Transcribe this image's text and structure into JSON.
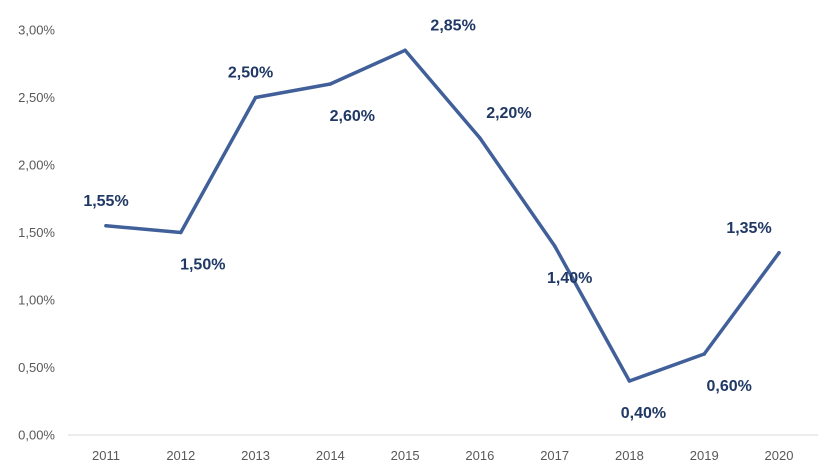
{
  "chart_data": {
    "type": "line",
    "title": "",
    "xlabel": "",
    "ylabel": "",
    "categories": [
      "2011",
      "2012",
      "2013",
      "2014",
      "2015",
      "2016",
      "2017",
      "2018",
      "2019",
      "2020"
    ],
    "series": [
      {
        "values": [
          1.55,
          1.5,
          2.5,
          2.6,
          2.85,
          2.2,
          1.4,
          0.4,
          0.6,
          1.35
        ],
        "data_labels": [
          "1,55%",
          "1,50%",
          "2,50%",
          "2,60%",
          "2,85%",
          "2,20%",
          "1,40%",
          "0,40%",
          "0,60%",
          "1,35%"
        ],
        "color": "#41609a"
      }
    ],
    "ylim": [
      0,
      3.0
    ],
    "yticks": [
      0,
      0.5,
      1.0,
      1.5,
      2.0,
      2.5,
      3.0
    ],
    "ytick_labels": [
      "0,00%",
      "0,50%",
      "1,00%",
      "1,50%",
      "2,00%",
      "2,50%",
      "3,00%"
    ],
    "grid": false,
    "legend": "none",
    "label_color": "#1f3864",
    "axis_color": "#d9d9d9"
  }
}
